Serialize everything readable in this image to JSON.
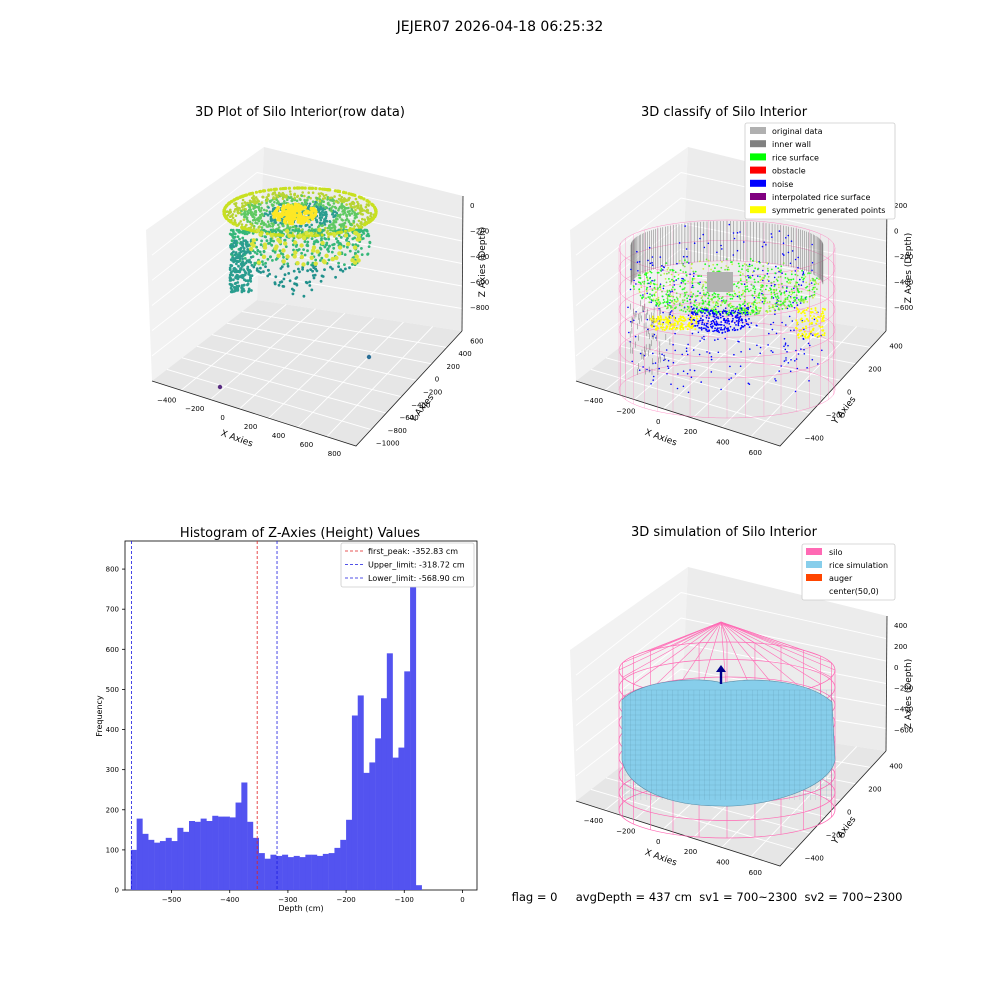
{
  "figure": {
    "suptitle": "JEJER07 2026-04-18 06:25:32",
    "status_line": "flag = 0     avgDepth = 437 cm  sv1 = 700~2300  sv2 = 700~2300"
  },
  "colors": {
    "hist_bar": "#5050f0",
    "first_peak": "#e02020",
    "limits": "#1a1ae0",
    "silo": "#ff69b4",
    "rice_simulation": "#87ceeb",
    "auger": "#ff4500",
    "original_data": "#b0b0b0",
    "inner_wall": "#808080",
    "rice_surface": "#00ff00",
    "obstacle": "#ff0000",
    "noise": "#0000ff",
    "interpolated_rice_surface": "#800080",
    "symmetric_generated_points": "#ffff00"
  },
  "chart_data": [
    {
      "type": "scatter",
      "subtype": "3d",
      "title": "3D Plot of Silo Interior(row data)",
      "xlabel": "X Axies",
      "ylabel": "Y Axies",
      "zlabel": "Z Axies (Depth)",
      "x_ticks": [
        "−400",
        "−200",
        "0",
        "200",
        "400",
        "600",
        "800"
      ],
      "y_ticks": [
        "600",
        "400",
        "200",
        "0",
        "−200",
        "−400",
        "−600",
        "−800",
        "−1000"
      ],
      "z_ticks": [
        "0",
        "−200",
        "−400",
        "−600",
        "−800"
      ],
      "outliers": [
        {
          "x": -150,
          "y": -950,
          "z": -800,
          "color": "#5a2d82"
        },
        {
          "x": 800,
          "y": 600,
          "z": -650,
          "color": "#2a6f97"
        }
      ]
    },
    {
      "type": "scatter",
      "subtype": "3d",
      "title": "3D classify of Silo Interior",
      "xlabel": "X Axies",
      "ylabel": "Y Axies",
      "zlabel": "Z Axies (Depth)",
      "x_ticks": [
        "−400",
        "−200",
        "0",
        "200",
        "400",
        "600"
      ],
      "y_ticks": [
        "400",
        "200",
        "0",
        "−200",
        "−400"
      ],
      "z_ticks": [
        "200",
        "0",
        "−200",
        "−400",
        "−600"
      ],
      "legend": [
        {
          "label": "original data",
          "color": "#b0b0b0"
        },
        {
          "label": "inner wall",
          "color": "#808080"
        },
        {
          "label": "rice surface",
          "color": "#00ff00"
        },
        {
          "label": "obstacle",
          "color": "#ff0000"
        },
        {
          "label": "noise",
          "color": "#0000ff"
        },
        {
          "label": "interpolated rice surface",
          "color": "#800080"
        },
        {
          "label": "symmetric generated points",
          "color": "#ffff00"
        }
      ]
    },
    {
      "type": "bar",
      "subtype": "histogram",
      "title": "Histogram of Z-Axies (Height) Values",
      "xlabel": "Depth (cm)",
      "ylabel": "Frequency",
      "xlim": [
        -580,
        25
      ],
      "ylim": [
        0,
        870
      ],
      "bin_width": 10,
      "bin_start": -570,
      "values": [
        100,
        178,
        140,
        125,
        118,
        122,
        130,
        122,
        155,
        145,
        172,
        170,
        178,
        172,
        185,
        183,
        183,
        181,
        218,
        268,
        170,
        130,
        92,
        78,
        88,
        85,
        88,
        82,
        85,
        82,
        88,
        88,
        85,
        90,
        92,
        105,
        125,
        175,
        435,
        485,
        292,
        318,
        378,
        478,
        590,
        330,
        355,
        545,
        822,
        12
      ],
      "x_ticks": [
        -500,
        -400,
        -300,
        -200,
        -100,
        0
      ],
      "x_tick_labels": [
        "−500",
        "−400",
        "−300",
        "−200",
        "−100",
        "0"
      ],
      "y_ticks": [
        0,
        100,
        200,
        300,
        400,
        500,
        600,
        700,
        800
      ],
      "y_tick_labels": [
        "0",
        "100",
        "200",
        "300",
        "400",
        "500",
        "600",
        "700",
        "800"
      ],
      "vlines": [
        {
          "name": "first_peak: -352.83 cm",
          "x": -352.83,
          "color": "#e02020"
        },
        {
          "name": "Upper_limit: -318.72 cm",
          "x": -318.72,
          "color": "#1a1ae0"
        },
        {
          "name": "Lower_limit: -568.90 cm",
          "x": -568.9,
          "color": "#1a1ae0"
        }
      ],
      "legend_position": "top-right"
    },
    {
      "type": "surface",
      "subtype": "3d",
      "title": "3D simulation of Silo Interior",
      "xlabel": "X Axies",
      "ylabel": "Y Axies",
      "zlabel": "Z Axies (Depth)",
      "x_ticks": [
        "−400",
        "−200",
        "0",
        "200",
        "400",
        "600"
      ],
      "y_ticks": [
        "400",
        "200",
        "0",
        "−200",
        "−400"
      ],
      "z_ticks": [
        "400",
        "200",
        "0",
        "−200",
        "−400",
        "−600"
      ],
      "legend": [
        {
          "label": "silo",
          "color": "#ff69b4"
        },
        {
          "label": "rice simulation",
          "color": "#87ceeb"
        },
        {
          "label": "auger",
          "color": "#ff4500"
        },
        {
          "label": "center(50,0)",
          "color": ""
        }
      ]
    }
  ]
}
